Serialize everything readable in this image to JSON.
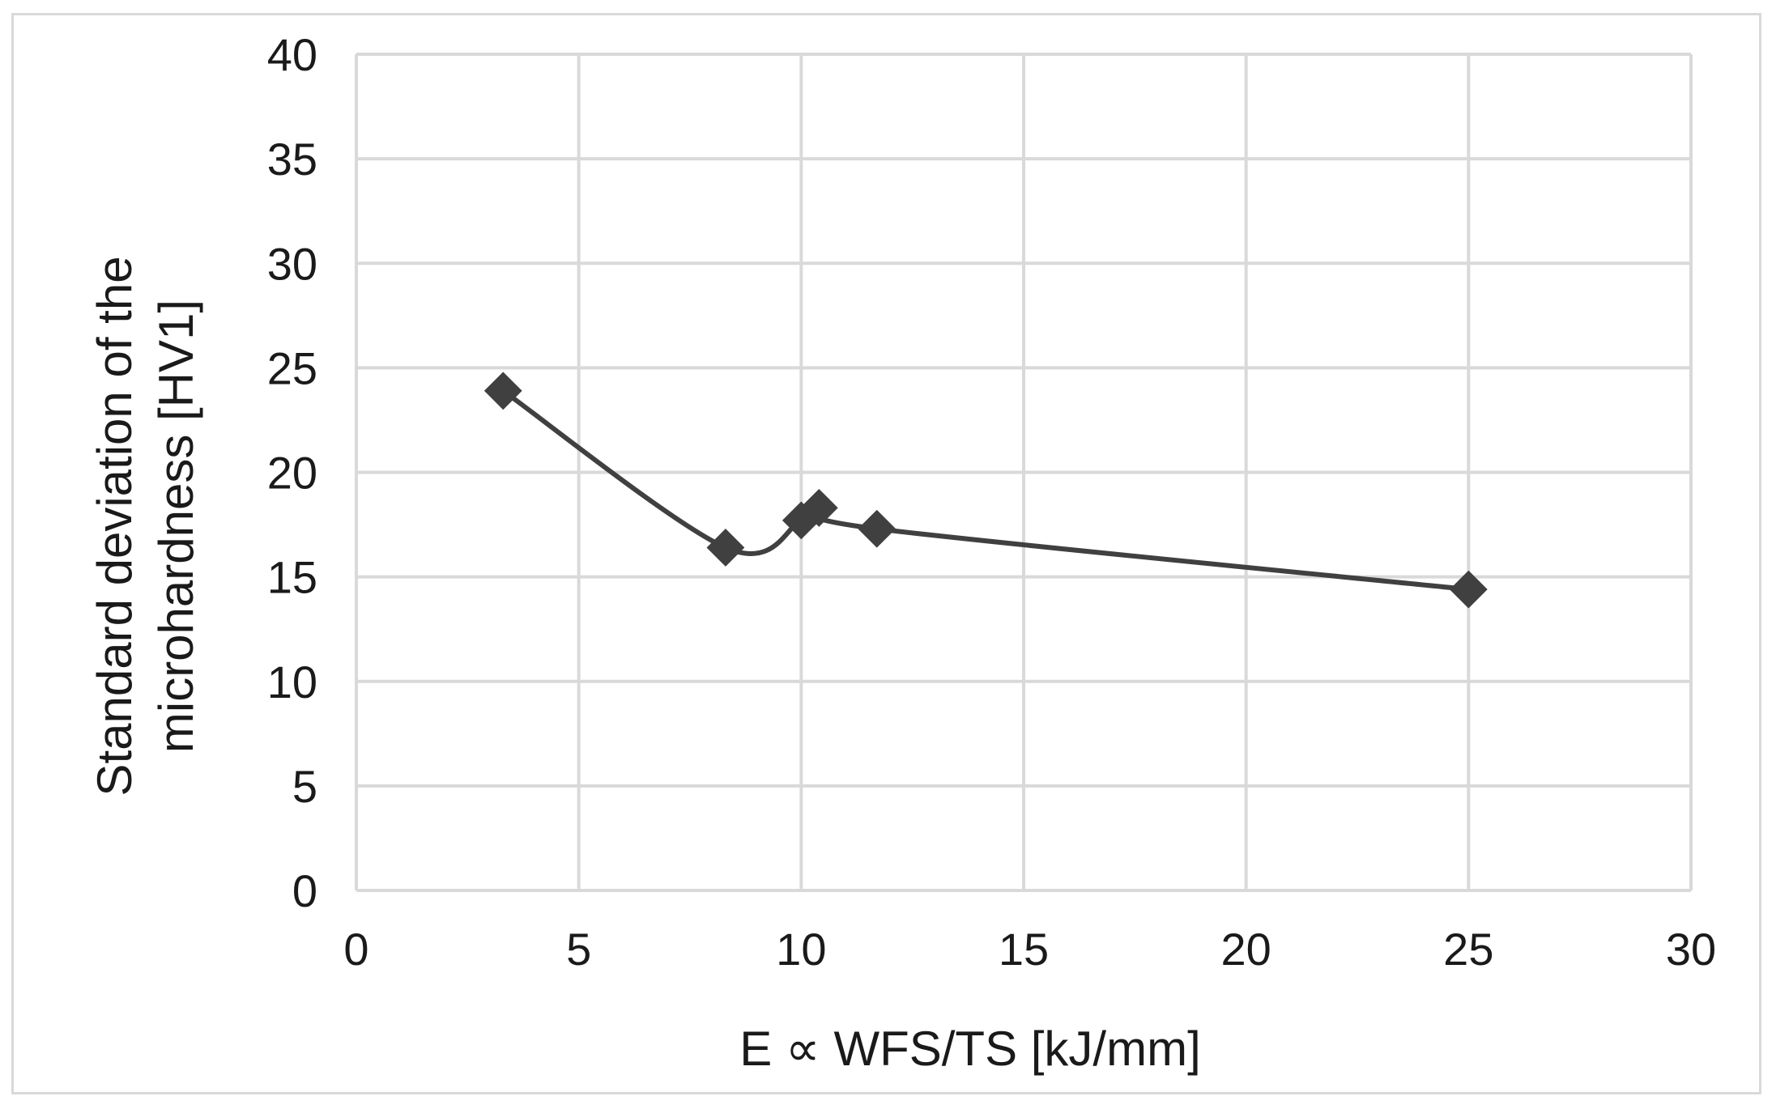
{
  "chart_data": {
    "type": "scatter",
    "title": "",
    "xlabel": "E ∝ WFS/TS [kJ/mm]",
    "ylabel_line1": "Standard deviation of the",
    "ylabel_line2": "microhardness [HV1]",
    "xlim": [
      0,
      30
    ],
    "ylim": [
      0,
      40
    ],
    "x_ticks": [
      0,
      5,
      10,
      15,
      20,
      25,
      30
    ],
    "y_ticks": [
      0,
      5,
      10,
      15,
      20,
      25,
      30,
      35,
      40
    ],
    "x_tick_labels": [
      "0",
      "5",
      "10",
      "15",
      "20",
      "25",
      "30"
    ],
    "y_tick_labels": [
      "0",
      "5",
      "10",
      "15",
      "20",
      "25",
      "30",
      "35",
      "40"
    ],
    "grid": true,
    "line_style": "smoothed",
    "marker": "diamond",
    "series": [
      {
        "name": "Standard deviation of the microhardness",
        "color": "#404040",
        "points": [
          {
            "x": 3.3,
            "y": 23.9
          },
          {
            "x": 8.3,
            "y": 16.4
          },
          {
            "x": 10.0,
            "y": 17.7
          },
          {
            "x": 10.4,
            "y": 18.3
          },
          {
            "x": 11.7,
            "y": 17.3
          },
          {
            "x": 25.0,
            "y": 14.4
          }
        ]
      }
    ],
    "colors": {
      "grid": "#d9d9d9",
      "text": "#1a1a1a",
      "line": "#404040"
    }
  }
}
